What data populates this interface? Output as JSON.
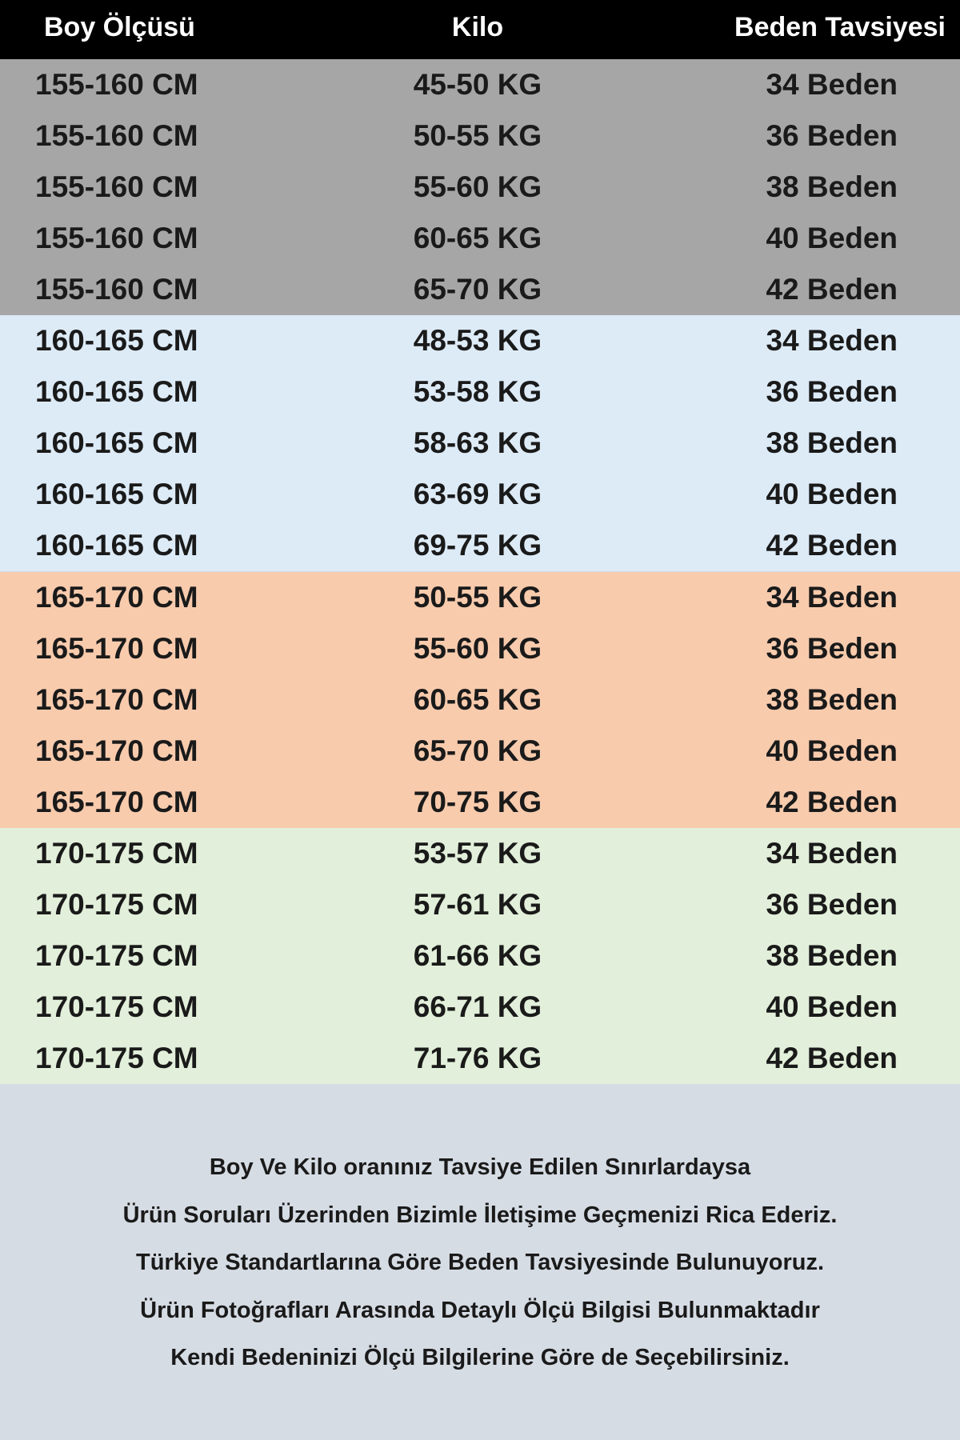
{
  "table": {
    "header": [
      "Boy Ölçüsü",
      "Kilo",
      "Beden Tavsiyesi"
    ],
    "rows": [
      [
        "155-160 CM",
        "45-50 KG",
        "34 Beden"
      ],
      [
        "155-160 CM",
        "50-55 KG",
        "36 Beden"
      ],
      [
        "155-160 CM",
        "55-60 KG",
        "38 Beden"
      ],
      [
        "155-160 CM",
        "60-65 KG",
        "40 Beden"
      ],
      [
        "155-160 CM",
        "65-70 KG",
        "42 Beden"
      ],
      [
        "160-165 CM",
        "48-53 KG",
        "34 Beden"
      ],
      [
        "160-165 CM",
        "53-58 KG",
        "36 Beden"
      ],
      [
        "160-165 CM",
        "58-63 KG",
        "38 Beden"
      ],
      [
        "160-165 CM",
        "63-69 KG",
        "40 Beden"
      ],
      [
        "160-165 CM",
        "69-75 KG",
        "42 Beden"
      ],
      [
        "165-170 CM",
        "50-55 KG",
        "34 Beden"
      ],
      [
        "165-170 CM",
        "55-60 KG",
        "36 Beden"
      ],
      [
        "165-170 CM",
        "60-65 KG",
        "38 Beden"
      ],
      [
        "165-170 CM",
        "65-70 KG",
        "40 Beden"
      ],
      [
        "165-170 CM",
        "70-75 KG",
        "42 Beden"
      ],
      [
        "170-175 CM",
        "53-57 KG",
        "34 Beden"
      ],
      [
        "170-175 CM",
        "57-61 KG",
        "36 Beden"
      ],
      [
        "170-175 CM",
        "61-66 KG",
        "38 Beden"
      ],
      [
        "170-175 CM",
        "66-71 KG",
        "40 Beden"
      ],
      [
        "170-175 CM",
        "71-76 KG",
        "42 Beden"
      ]
    ]
  },
  "footer": {
    "lines": [
      "Boy Ve Kilo oranınız Tavsiye Edilen Sınırlardaysa",
      "Ürün Soruları Üzerinden Bizimle İletişime Geçmenizi Rica Ederiz.",
      "Türkiye Standartlarına Göre Beden Tavsiyesinde Bulunuyoruz.",
      "Ürün Fotoğrafları Arasında Detaylı Ölçü Bilgisi Bulunmaktadır",
      "Kendi Bedeninizi Ölçü Bilgilerine Göre de Seçebilirsiniz."
    ]
  }
}
